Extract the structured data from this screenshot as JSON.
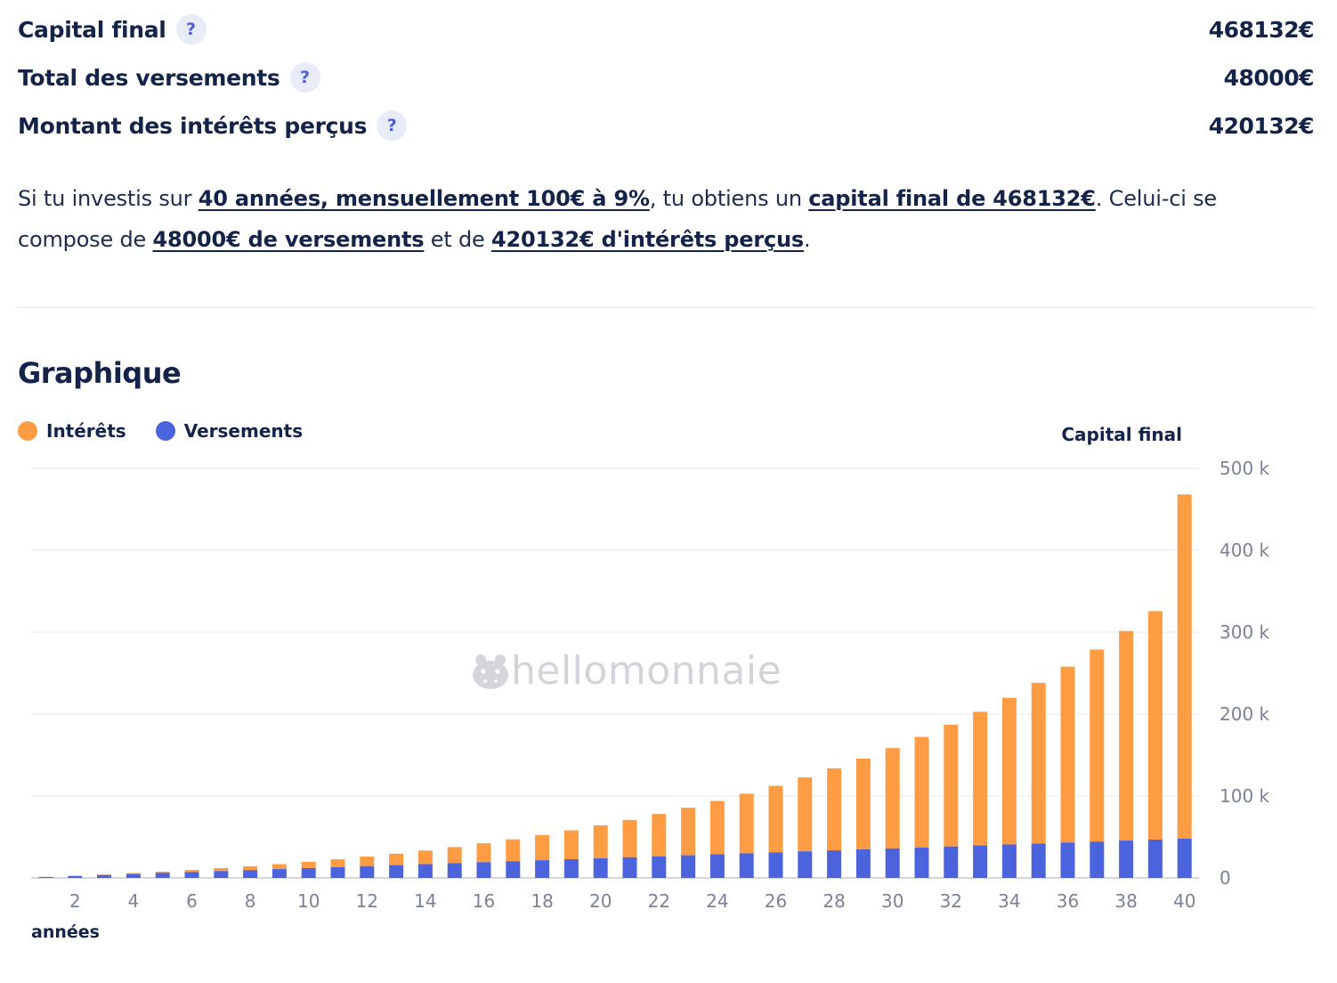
{
  "summary": {
    "capital_label": "Capital final",
    "capital_value": "468132€",
    "versements_label": "Total des versements",
    "versements_value": "48000€",
    "interets_label": "Montant des intérêts perçus",
    "interets_value": "420132€",
    "help_glyph": "?"
  },
  "sentence": {
    "p1": "Si tu investis sur ",
    "h1": "40 années, mensuellement 100€ à 9%",
    "p2": ", tu obtiens un ",
    "h2": "capital final de 468132€",
    "p3": ". Celui-ci se compose de ",
    "h3": "48000€ de versements",
    "p4": " et de ",
    "h4": "420132€ d'intérêts perçus",
    "p5": "."
  },
  "graph": {
    "title": "Graphique",
    "legend": [
      {
        "label": "Intérêts",
        "color": "#fe9c43"
      },
      {
        "label": "Versements",
        "color": "#4b63dd"
      }
    ],
    "y_axis_title": "Capital final",
    "x_axis_title": "années",
    "watermark": "hellomonnaie",
    "watermark_icon": "hippo-logo-icon"
  },
  "chart_data": {
    "type": "bar",
    "stacked": true,
    "x": [
      1,
      2,
      3,
      4,
      5,
      6,
      7,
      8,
      9,
      10,
      11,
      12,
      13,
      14,
      15,
      16,
      17,
      18,
      19,
      20,
      21,
      22,
      23,
      24,
      25,
      26,
      27,
      28,
      29,
      30,
      31,
      32,
      33,
      34,
      35,
      36,
      37,
      38,
      39,
      40
    ],
    "series": [
      {
        "name": "Versements",
        "color": "#4b63dd",
        "values": [
          1200,
          2400,
          3600,
          4800,
          6000,
          7200,
          8400,
          9600,
          10800,
          12000,
          13200,
          14400,
          15600,
          16800,
          18000,
          19200,
          20400,
          21600,
          22800,
          24000,
          25200,
          26400,
          27600,
          28800,
          30000,
          31200,
          32400,
          33600,
          34800,
          36000,
          37200,
          38400,
          39600,
          40800,
          42000,
          43200,
          44400,
          45600,
          46800,
          48000
        ]
      },
      {
        "name": "Intérêts",
        "color": "#fe9c43",
        "values": [
          60,
          254,
          593,
          1076,
          1720,
          2530,
          3520,
          4700,
          6090,
          7700,
          9540,
          11640,
          14020,
          16700,
          19690,
          23020,
          26720,
          30800,
          35300,
          40240,
          45660,
          51600,
          58080,
          65150,
          72850,
          81220,
          90320,
          100200,
          110900,
          122500,
          135000,
          148600,
          163300,
          179100,
          196200,
          214700,
          234500,
          255800,
          278900,
          420132
        ]
      }
    ],
    "totals": [
      1260,
      2654,
      4193,
      5876,
      7720,
      9730,
      11920,
      14300,
      16890,
      19700,
      22740,
      26040,
      29620,
      33500,
      37690,
      42220,
      47120,
      52400,
      58100,
      64240,
      70860,
      78000,
      85680,
      93950,
      102850,
      112420,
      122720,
      133800,
      145700,
      158500,
      172200,
      187000,
      202900,
      219900,
      238200,
      257900,
      278900,
      301400,
      325700,
      468132
    ],
    "y_ticks": [
      "0",
      "100 k",
      "200 k",
      "300 k",
      "400 k",
      "500 k"
    ],
    "y_tick_values": [
      0,
      100000,
      200000,
      300000,
      400000,
      500000
    ],
    "ylim": [
      0,
      500000
    ],
    "x_tick_labels": [
      "2",
      "4",
      "6",
      "8",
      "10",
      "12",
      "14",
      "16",
      "18",
      "20",
      "22",
      "24",
      "26",
      "28",
      "30",
      "32",
      "34",
      "36",
      "38",
      "40"
    ],
    "xlabel": "années",
    "ylabel": "Capital final",
    "grid": true,
    "legend_position": "top-left"
  }
}
